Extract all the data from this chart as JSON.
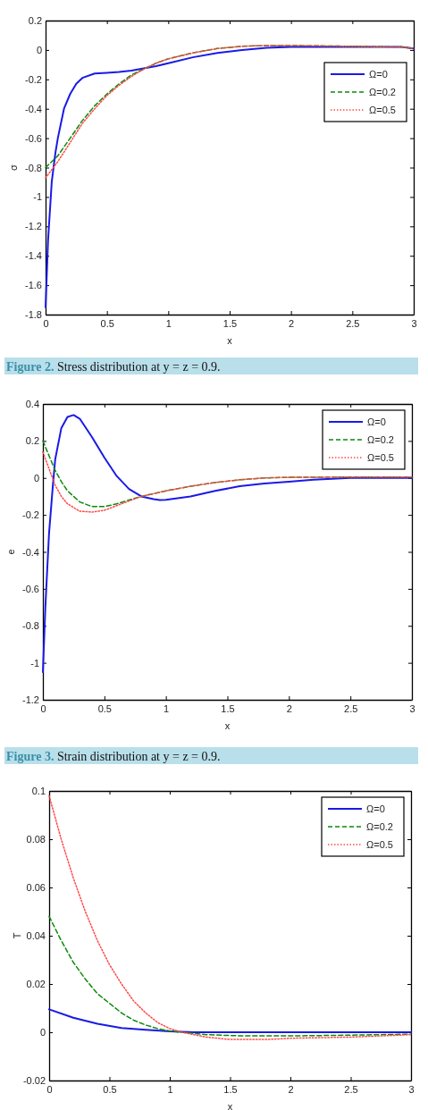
{
  "chart_data": [
    {
      "type": "line",
      "xlabel": "x",
      "ylabel": "σ",
      "xlim": [
        0,
        3
      ],
      "ylim": [
        -1.8,
        0.2
      ],
      "xticks": [
        0,
        0.5,
        1,
        1.5,
        2,
        2.5,
        3
      ],
      "yticks": [
        -1.8,
        -1.6,
        -1.4,
        -1.2,
        -1,
        -0.8,
        -0.6,
        -0.4,
        -0.2,
        0,
        0.2
      ],
      "legend": "top right",
      "annotations": [
        "Figure 2. Stress distribution at y = z = 0.9."
      ],
      "series": [
        {
          "name": "Ω=0",
          "color": "#1a1ae6",
          "line_style": "solid",
          "x": [
            0,
            0.02,
            0.05,
            0.08,
            0.1,
            0.15,
            0.2,
            0.25,
            0.3,
            0.4,
            0.5,
            0.6,
            0.7,
            0.8,
            0.9,
            1.0,
            1.2,
            1.4,
            1.6,
            1.8,
            2.0,
            2.5,
            2.9,
            3.0
          ],
          "values": [
            -1.75,
            -1.3,
            -0.9,
            -0.7,
            -0.6,
            -0.4,
            -0.3,
            -0.23,
            -0.19,
            -0.16,
            -0.155,
            -0.15,
            -0.14,
            -0.125,
            -0.11,
            -0.09,
            -0.05,
            -0.02,
            0.0,
            0.015,
            0.02,
            0.02,
            0.02,
            0.01
          ]
        },
        {
          "name": "Ω=0.2",
          "color": "#0a8a0a",
          "line_style": "dashed",
          "x": [
            0,
            0.1,
            0.2,
            0.3,
            0.4,
            0.5,
            0.6,
            0.7,
            0.8,
            0.9,
            1.0,
            1.2,
            1.4,
            1.6,
            1.8,
            2.0,
            2.5,
            2.9,
            3.0
          ],
          "values": [
            -0.8,
            -0.72,
            -0.6,
            -0.48,
            -0.38,
            -0.3,
            -0.23,
            -0.17,
            -0.13,
            -0.09,
            -0.06,
            -0.02,
            0.01,
            0.025,
            0.03,
            0.03,
            0.025,
            0.02,
            0.01
          ]
        },
        {
          "name": "Ω=0.5",
          "color": "#ff4a4a",
          "line_style": "dotted",
          "x": [
            0,
            0.1,
            0.2,
            0.3,
            0.4,
            0.5,
            0.6,
            0.7,
            0.8,
            0.9,
            1.0,
            1.2,
            1.4,
            1.6,
            1.8,
            2.0,
            2.5,
            2.9,
            3.0
          ],
          "values": [
            -0.87,
            -0.76,
            -0.63,
            -0.5,
            -0.4,
            -0.31,
            -0.24,
            -0.18,
            -0.13,
            -0.09,
            -0.06,
            -0.02,
            0.01,
            0.025,
            0.03,
            0.03,
            0.025,
            0.02,
            0.01
          ]
        }
      ]
    },
    {
      "type": "line",
      "xlabel": "x",
      "ylabel": "e",
      "xlim": [
        0,
        3
      ],
      "ylim": [
        -1.2,
        0.4
      ],
      "xticks": [
        0,
        0.5,
        1,
        1.5,
        2,
        2.5,
        3
      ],
      "yticks": [
        -1.2,
        -1,
        -0.8,
        -0.6,
        -0.4,
        -0.2,
        0,
        0.2,
        0.4
      ],
      "legend": "top right",
      "annotations": [
        "Figure 3. Strain distribution at y = z = 0.9."
      ],
      "series": [
        {
          "name": "Ω=0",
          "color": "#1a1ae6",
          "line_style": "solid",
          "x": [
            0,
            0.02,
            0.05,
            0.08,
            0.1,
            0.15,
            0.2,
            0.25,
            0.3,
            0.4,
            0.5,
            0.6,
            0.7,
            0.8,
            0.9,
            0.95,
            1.0,
            1.2,
            1.4,
            1.6,
            1.8,
            2.0,
            2.2,
            2.5,
            3.0
          ],
          "values": [
            -1.05,
            -0.7,
            -0.3,
            -0.05,
            0.1,
            0.27,
            0.33,
            0.34,
            0.32,
            0.22,
            0.11,
            0.01,
            -0.06,
            -0.1,
            -0.115,
            -0.12,
            -0.118,
            -0.1,
            -0.07,
            -0.045,
            -0.03,
            -0.02,
            -0.01,
            0,
            0
          ]
        },
        {
          "name": "Ω=0.2",
          "color": "#0a8a0a",
          "line_style": "dashed",
          "x": [
            0,
            0.05,
            0.1,
            0.15,
            0.2,
            0.3,
            0.4,
            0.5,
            0.6,
            0.7,
            0.8,
            0.9,
            1.0,
            1.2,
            1.4,
            1.6,
            1.8,
            2.0,
            2.5,
            3.0
          ],
          "values": [
            0.2,
            0.12,
            0.04,
            -0.02,
            -0.07,
            -0.13,
            -0.155,
            -0.155,
            -0.14,
            -0.12,
            -0.1,
            -0.085,
            -0.07,
            -0.045,
            -0.025,
            -0.01,
            0,
            0.003,
            0.005,
            0.005
          ]
        },
        {
          "name": "Ω=0.5",
          "color": "#ff4a4a",
          "line_style": "dotted",
          "x": [
            0,
            0.05,
            0.1,
            0.15,
            0.2,
            0.3,
            0.4,
            0.5,
            0.6,
            0.7,
            0.8,
            0.9,
            1.0,
            1.2,
            1.4,
            1.6,
            1.8,
            2.0,
            2.5,
            3.0
          ],
          "values": [
            0.14,
            0.05,
            -0.04,
            -0.1,
            -0.14,
            -0.18,
            -0.185,
            -0.175,
            -0.15,
            -0.125,
            -0.1,
            -0.085,
            -0.07,
            -0.045,
            -0.025,
            -0.01,
            0,
            0.003,
            0.005,
            0.005
          ]
        }
      ]
    },
    {
      "type": "line",
      "xlabel": "x",
      "ylabel": "T",
      "xlim": [
        0,
        3
      ],
      "ylim": [
        -0.02,
        0.1
      ],
      "xticks": [
        0,
        0.5,
        1,
        1.5,
        2,
        2.5,
        3
      ],
      "yticks": [
        -0.02,
        0,
        0.02,
        0.04,
        0.06,
        0.08,
        0.1
      ],
      "legend": "top right",
      "series": [
        {
          "name": "Ω=0",
          "color": "#1a1ae6",
          "line_style": "solid",
          "x": [
            0,
            0.2,
            0.4,
            0.6,
            0.8,
            1.0,
            1.2,
            3.0
          ],
          "values": [
            0.0095,
            0.006,
            0.0035,
            0.0018,
            0.001,
            0.0004,
            0,
            0
          ]
        },
        {
          "name": "Ω=0.2",
          "color": "#0a8a0a",
          "line_style": "dashed",
          "x": [
            0,
            0.1,
            0.2,
            0.3,
            0.4,
            0.5,
            0.6,
            0.7,
            0.8,
            0.9,
            1.0,
            1.1,
            1.3,
            1.6,
            2.0,
            2.5,
            3.0
          ],
          "values": [
            0.048,
            0.038,
            0.029,
            0.022,
            0.016,
            0.012,
            0.008,
            0.005,
            0.003,
            0.0015,
            0.0005,
            0,
            -0.001,
            -0.0015,
            -0.0015,
            -0.0012,
            -0.0008
          ]
        },
        {
          "name": "Ω=0.5",
          "color": "#ff4a4a",
          "line_style": "dotted",
          "x": [
            0,
            0.1,
            0.2,
            0.3,
            0.4,
            0.5,
            0.6,
            0.7,
            0.8,
            0.9,
            1.0,
            1.1,
            1.3,
            1.5,
            1.8,
            2.0,
            2.5,
            3.0
          ],
          "values": [
            0.098,
            0.08,
            0.064,
            0.05,
            0.038,
            0.028,
            0.02,
            0.013,
            0.008,
            0.004,
            0.0015,
            0,
            -0.002,
            -0.003,
            -0.003,
            -0.0025,
            -0.002,
            -0.001
          ]
        }
      ]
    }
  ]
}
